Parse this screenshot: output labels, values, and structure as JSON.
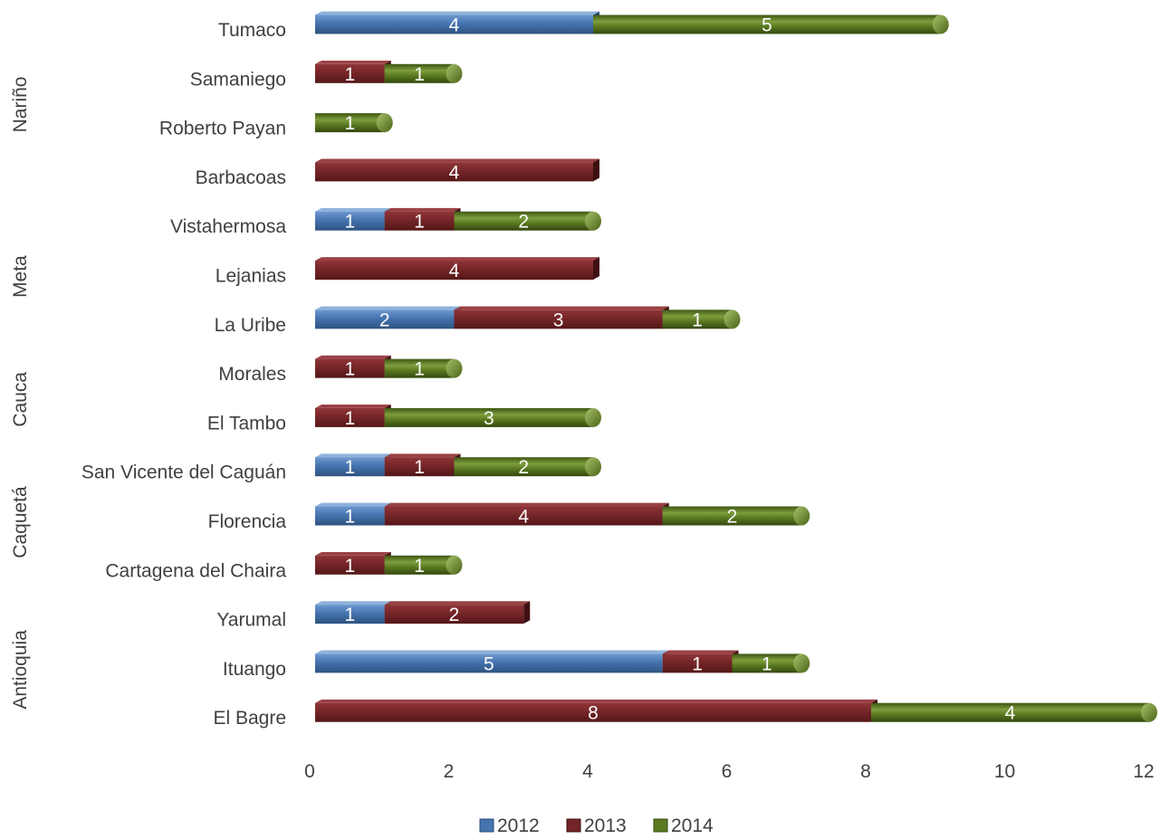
{
  "chart_data": {
    "type": "bar",
    "orientation": "horizontal",
    "stacked": true,
    "categories": [
      "Tumaco",
      "Samaniego",
      "Roberto Payan",
      "Barbacoas",
      "Vistahermosa",
      "Lejanias",
      "La Uribe",
      "Morales",
      "El Tambo",
      "San Vicente del Caguán",
      "Florencia",
      "Cartagena del Chaira",
      "Yarumal",
      "Ituango",
      "El Bagre"
    ],
    "groups": [
      {
        "label": "Nariño",
        "categories": [
          "Tumaco",
          "Samaniego",
          "Roberto Payan",
          "Barbacoas"
        ]
      },
      {
        "label": "Meta",
        "categories": [
          "Vistahermosa",
          "Lejanias",
          "La Uribe"
        ]
      },
      {
        "label": "Cauca",
        "categories": [
          "Morales",
          "El Tambo"
        ]
      },
      {
        "label": "Caquetá",
        "categories": [
          "San Vicente del Caguán",
          "Florencia",
          "Cartagena del Chaira"
        ]
      },
      {
        "label": "Antioquia",
        "categories": [
          "Yarumal",
          "Ituango",
          "El Bagre"
        ]
      }
    ],
    "series": [
      {
        "name": "2012",
        "color": "#4674b0",
        "shape": "box",
        "values": [
          4,
          0,
          0,
          0,
          1,
          0,
          2,
          0,
          0,
          1,
          1,
          0,
          1,
          5,
          0
        ]
      },
      {
        "name": "2013",
        "color": "#722426",
        "shape": "box",
        "values": [
          0,
          1,
          0,
          4,
          1,
          4,
          3,
          1,
          1,
          1,
          4,
          1,
          2,
          1,
          8
        ]
      },
      {
        "name": "2014",
        "color": "#5b7a21",
        "shape": "cylinder",
        "values": [
          5,
          1,
          1,
          0,
          2,
          0,
          1,
          1,
          3,
          2,
          2,
          1,
          0,
          1,
          4
        ]
      }
    ],
    "xlim": [
      0,
      12
    ],
    "xticks": [
      "0",
      "2",
      "4",
      "6",
      "8",
      "10",
      "12"
    ],
    "grid": false,
    "legend_position": "bottom"
  }
}
